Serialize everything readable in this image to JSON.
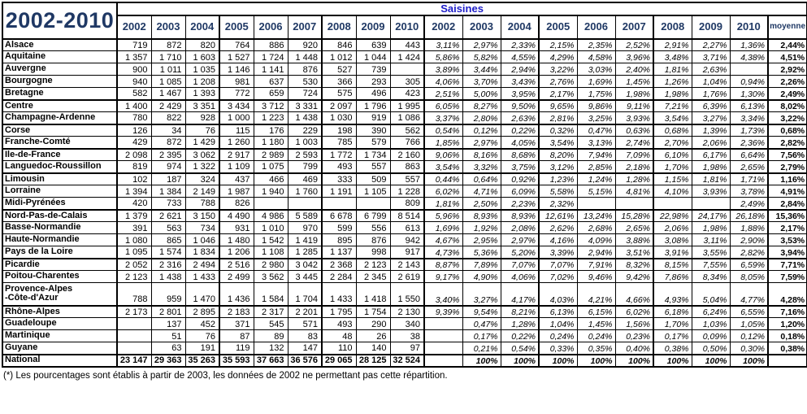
{
  "title": "2002-2010",
  "group_header": "Saisines",
  "years": [
    "2002",
    "2003",
    "2004",
    "2005",
    "2006",
    "2007",
    "2008",
    "2009",
    "2010"
  ],
  "moyenne_label": "moyenne",
  "footnote": "(*) Les pourcentages sont établis à partir de 2003, les données de 2002 ne permettant pas cette répartition.",
  "colors": {
    "header_navy": "#1F3864",
    "saisines_blue": "#1C1CC8",
    "border_black": "#000000"
  },
  "rows": [
    {
      "region": "Alsace",
      "counts": [
        "719",
        "872",
        "820",
        "764",
        "886",
        "920",
        "846",
        "639",
        "443"
      ],
      "pcts": [
        "3,11%",
        "2,97%",
        "2,33%",
        "2,15%",
        "2,35%",
        "2,52%",
        "2,91%",
        "2,27%",
        "1,36%"
      ],
      "moyenne": "2,44%"
    },
    {
      "region": "Aquitaine",
      "counts": [
        "1 357",
        "1 710",
        "1 603",
        "1 527",
        "1 724",
        "1 448",
        "1 012",
        "1 044",
        "1 424"
      ],
      "pcts": [
        "5,86%",
        "5,82%",
        "4,55%",
        "4,29%",
        "4,58%",
        "3,96%",
        "3,48%",
        "3,71%",
        "4,38%"
      ],
      "moyenne": "4,51%"
    },
    {
      "region": "Auvergne",
      "counts": [
        "900",
        "1 011",
        "1 035",
        "1 146",
        "1 141",
        "876",
        "527",
        "739",
        ""
      ],
      "pcts": [
        "3,89%",
        "3,44%",
        "2,94%",
        "3,22%",
        "3,03%",
        "2,40%",
        "1,81%",
        "2,63%",
        ""
      ],
      "moyenne": "2,92%"
    },
    {
      "region": "Bourgogne",
      "counts": [
        "940",
        "1 085",
        "1 208",
        "981",
        "637",
        "530",
        "366",
        "293",
        "305"
      ],
      "pcts": [
        "4,06%",
        "3,70%",
        "3,43%",
        "2,76%",
        "1,69%",
        "1,45%",
        "1,26%",
        "1,04%",
        "0,94%"
      ],
      "moyenne": "2,26%"
    },
    {
      "region": "Bretagne",
      "counts": [
        "582",
        "1 467",
        "1 393",
        "772",
        "659",
        "724",
        "575",
        "496",
        "423"
      ],
      "pcts": [
        "2,51%",
        "5,00%",
        "3,95%",
        "2,17%",
        "1,75%",
        "1,98%",
        "1,98%",
        "1,76%",
        "1,30%"
      ],
      "moyenne": "2,49%"
    },
    {
      "region": "Centre",
      "counts": [
        "1 400",
        "2 429",
        "3 351",
        "3 434",
        "3 712",
        "3 331",
        "2 097",
        "1 796",
        "1 995"
      ],
      "pcts": [
        "6,05%",
        "8,27%",
        "9,50%",
        "9,65%",
        "9,86%",
        "9,11%",
        "7,21%",
        "6,39%",
        "6,13%"
      ],
      "moyenne": "8,02%"
    },
    {
      "region": "Champagne-Ardenne",
      "counts": [
        "780",
        "822",
        "928",
        "1 000",
        "1 223",
        "1 438",
        "1 030",
        "919",
        "1 086"
      ],
      "pcts": [
        "3,37%",
        "2,80%",
        "2,63%",
        "2,81%",
        "3,25%",
        "3,93%",
        "3,54%",
        "3,27%",
        "3,34%"
      ],
      "moyenne": "3,22%"
    },
    {
      "region": "Corse",
      "counts": [
        "126",
        "34",
        "76",
        "115",
        "176",
        "229",
        "198",
        "390",
        "562"
      ],
      "pcts": [
        "0,54%",
        "0,12%",
        "0,22%",
        "0,32%",
        "0,47%",
        "0,63%",
        "0,68%",
        "1,39%",
        "1,73%"
      ],
      "moyenne": "0,68%"
    },
    {
      "region": "Franche-Comté",
      "counts": [
        "429",
        "872",
        "1 429",
        "1 260",
        "1 180",
        "1 003",
        "785",
        "579",
        "766"
      ],
      "pcts": [
        "1,85%",
        "2,97%",
        "4,05%",
        "3,54%",
        "3,13%",
        "2,74%",
        "2,70%",
        "2,06%",
        "2,36%"
      ],
      "moyenne": "2,82%"
    },
    {
      "region": "Ile-de-France",
      "counts": [
        "2 098",
        "2 395",
        "3 062",
        "2 917",
        "2 989",
        "2 593",
        "1 772",
        "1 734",
        "2 160"
      ],
      "pcts": [
        "9,06%",
        "8,16%",
        "8,68%",
        "8,20%",
        "7,94%",
        "7,09%",
        "6,10%",
        "6,17%",
        "6,64%"
      ],
      "moyenne": "7,56%"
    },
    {
      "region": "Languedoc-Roussillon",
      "counts": [
        "819",
        "974",
        "1 322",
        "1 109",
        "1 075",
        "799",
        "493",
        "557",
        "863"
      ],
      "pcts": [
        "3,54%",
        "3,32%",
        "3,75%",
        "3,12%",
        "2,85%",
        "2,18%",
        "1,70%",
        "1,98%",
        "2,65%"
      ],
      "moyenne": "2,79%"
    },
    {
      "region": "Limousin",
      "counts": [
        "102",
        "187",
        "324",
        "437",
        "466",
        "469",
        "333",
        "509",
        "557"
      ],
      "pcts": [
        "0,44%",
        "0,64%",
        "0,92%",
        "1,23%",
        "1,24%",
        "1,28%",
        "1,15%",
        "1,81%",
        "1,71%"
      ],
      "moyenne": "1,16%"
    },
    {
      "region": "Lorraine",
      "counts": [
        "1 394",
        "1 384",
        "2 149",
        "1 987",
        "1 940",
        "1 760",
        "1 191",
        "1 105",
        "1 228"
      ],
      "pcts": [
        "6,02%",
        "4,71%",
        "6,09%",
        "5,58%",
        "5,15%",
        "4,81%",
        "4,10%",
        "3,93%",
        "3,78%"
      ],
      "moyenne": "4,91%"
    },
    {
      "region": "Midi-Pyrénées",
      "counts": [
        "420",
        "733",
        "788",
        "826",
        "",
        "",
        "",
        "",
        "809"
      ],
      "pcts": [
        "1,81%",
        "2,50%",
        "2,23%",
        "2,32%",
        "",
        "",
        "",
        "",
        "2,49%"
      ],
      "moyenne": "2,84%"
    },
    {
      "region": "Nord-Pas-de-Calais",
      "counts": [
        "1 379",
        "2 621",
        "3 150",
        "4 490",
        "4 986",
        "5 589",
        "6 678",
        "6 799",
        "8 514"
      ],
      "pcts": [
        "5,96%",
        "8,93%",
        "8,93%",
        "12,61%",
        "13,24%",
        "15,28%",
        "22,98%",
        "24,17%",
        "26,18%"
      ],
      "moyenne": "15,36%"
    },
    {
      "region": "Basse-Normandie",
      "counts": [
        "391",
        "563",
        "734",
        "931",
        "1 010",
        "970",
        "599",
        "556",
        "613"
      ],
      "pcts": [
        "1,69%",
        "1,92%",
        "2,08%",
        "2,62%",
        "2,68%",
        "2,65%",
        "2,06%",
        "1,98%",
        "1,88%"
      ],
      "moyenne": "2,17%"
    },
    {
      "region": "Haute-Normandie",
      "counts": [
        "1 080",
        "865",
        "1 046",
        "1 480",
        "1 542",
        "1 419",
        "895",
        "876",
        "942"
      ],
      "pcts": [
        "4,67%",
        "2,95%",
        "2,97%",
        "4,16%",
        "4,09%",
        "3,88%",
        "3,08%",
        "3,11%",
        "2,90%"
      ],
      "moyenne": "3,53%"
    },
    {
      "region": "Pays de la Loire",
      "counts": [
        "1 095",
        "1 574",
        "1 834",
        "1 206",
        "1 108",
        "1 285",
        "1 137",
        "998",
        "917"
      ],
      "pcts": [
        "4,73%",
        "5,36%",
        "5,20%",
        "3,39%",
        "2,94%",
        "3,51%",
        "3,91%",
        "3,55%",
        "2,82%"
      ],
      "moyenne": "3,94%"
    },
    {
      "region": "Picardie",
      "counts": [
        "2 052",
        "2 316",
        "2 494",
        "2 516",
        "2 980",
        "3 042",
        "2 368",
        "2 123",
        "2 143"
      ],
      "pcts": [
        "8,87%",
        "7,89%",
        "7,07%",
        "7,07%",
        "7,91%",
        "8,32%",
        "8,15%",
        "7,55%",
        "6,59%"
      ],
      "moyenne": "7,71%"
    },
    {
      "region": "Poitou-Charentes",
      "counts": [
        "2 123",
        "1 438",
        "1 433",
        "2 499",
        "3 562",
        "3 445",
        "2 284",
        "2 345",
        "2 619"
      ],
      "pcts": [
        "9,17%",
        "4,90%",
        "4,06%",
        "7,02%",
        "9,46%",
        "9,42%",
        "7,86%",
        "8,34%",
        "8,05%"
      ],
      "moyenne": "7,59%"
    },
    {
      "region": "Provence-Alpes\n-Côte-d'Azur",
      "counts": [
        "788",
        "959",
        "1 470",
        "1 436",
        "1 584",
        "1 704",
        "1 433",
        "1 418",
        "1 550"
      ],
      "pcts": [
        "3,40%",
        "3,27%",
        "4,17%",
        "4,03%",
        "4,21%",
        "4,66%",
        "4,93%",
        "5,04%",
        "4,77%"
      ],
      "moyenne": "4,28%"
    },
    {
      "region": "Rhône-Alpes",
      "counts": [
        "2 173",
        "2 801",
        "2 895",
        "2 183",
        "2 317",
        "2 201",
        "1 795",
        "1 754",
        "2 130"
      ],
      "pcts": [
        "9,39%",
        "9,54%",
        "8,21%",
        "6,13%",
        "6,15%",
        "6,02%",
        "6,18%",
        "6,24%",
        "6,55%"
      ],
      "moyenne": "7,16%"
    },
    {
      "region": "Guadeloupe",
      "counts": [
        "",
        "137",
        "452",
        "371",
        "545",
        "571",
        "493",
        "290",
        "340"
      ],
      "pcts": [
        "",
        "0,47%",
        "1,28%",
        "1,04%",
        "1,45%",
        "1,56%",
        "1,70%",
        "1,03%",
        "1,05%"
      ],
      "moyenne": "1,20%"
    },
    {
      "region": "Martinique",
      "counts": [
        "",
        "51",
        "76",
        "87",
        "89",
        "83",
        "48",
        "26",
        "38"
      ],
      "pcts": [
        "",
        "0,17%",
        "0,22%",
        "0,24%",
        "0,24%",
        "0,23%",
        "0,17%",
        "0,09%",
        "0,12%"
      ],
      "moyenne": "0,18%"
    },
    {
      "region": "Guyane",
      "counts": [
        "",
        "63",
        "191",
        "119",
        "132",
        "147",
        "110",
        "140",
        "97"
      ],
      "pcts": [
        "",
        "0,21%",
        "0,54%",
        "0,33%",
        "0,35%",
        "0,40%",
        "0,38%",
        "0,50%",
        "0,30%"
      ],
      "moyenne": "0,38%"
    },
    {
      "region": "National",
      "counts": [
        "23 147",
        "29 363",
        "35 263",
        "35 593",
        "37 663",
        "36 576",
        "29 065",
        "28 125",
        "32 524"
      ],
      "pcts": [
        "",
        "100%",
        "100%",
        "100%",
        "100%",
        "100%",
        "100%",
        "100%",
        "100%"
      ],
      "moyenne": ""
    }
  ]
}
